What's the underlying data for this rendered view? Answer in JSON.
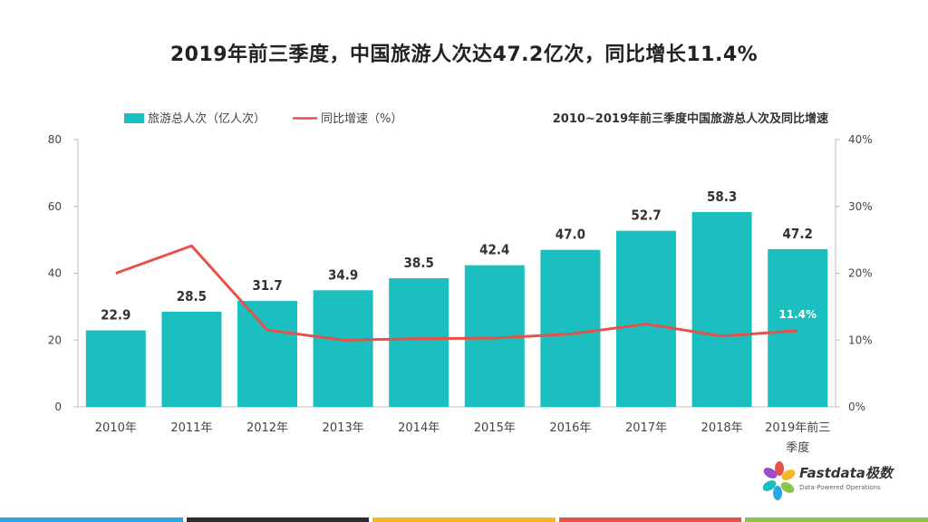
{
  "title": "2019年前三季度，中国旅游人次达47.2亿次，同比增长11.4%",
  "chart_data": {
    "type": "bar",
    "subtitle": "2010~2019年前三季度中国旅游总人次及同比增速",
    "categories": [
      "2010年",
      "2011年",
      "2012年",
      "2013年",
      "2014年",
      "2015年",
      "2016年",
      "2017年",
      "2018年",
      "2019年前三季度"
    ],
    "series": [
      {
        "name": "旅游总人次（亿人次）",
        "type": "bar",
        "axis": "left",
        "color": "#1CBFBF",
        "values": [
          22.9,
          28.5,
          31.7,
          34.9,
          38.5,
          42.4,
          47.0,
          52.7,
          58.3,
          47.2
        ],
        "labels": [
          "22.9",
          "28.5",
          "31.7",
          "34.9",
          "38.5",
          "42.4",
          "47.0",
          "52.7",
          "58.3",
          "47.2"
        ]
      },
      {
        "name": "同比增速（%）",
        "type": "line",
        "axis": "right",
        "color": "#E8504A",
        "values": [
          20.0,
          24.1,
          11.5,
          10.0,
          10.2,
          10.3,
          10.9,
          12.4,
          10.6,
          11.4
        ],
        "visible_label": {
          "index": 9,
          "text": "11.4%"
        }
      }
    ],
    "y_left": {
      "min": 0,
      "max": 80,
      "ticks": [
        "0",
        "20",
        "40",
        "60",
        "80"
      ]
    },
    "y_right": {
      "min": 0,
      "max": 40,
      "ticks": [
        "0%",
        "10%",
        "20%",
        "30%",
        "40%"
      ]
    },
    "grid": false,
    "legend_position": "top-left"
  },
  "logo": {
    "name": "Fastdata极数",
    "tagline": "Data-Powered Operations"
  },
  "colors": {
    "bar": "#1CBFBF",
    "line": "#E8504A",
    "stripe": [
      "#29A9E0",
      "#2B2B2B",
      "#F5B820",
      "#E8504A",
      "#8BC34A"
    ]
  }
}
